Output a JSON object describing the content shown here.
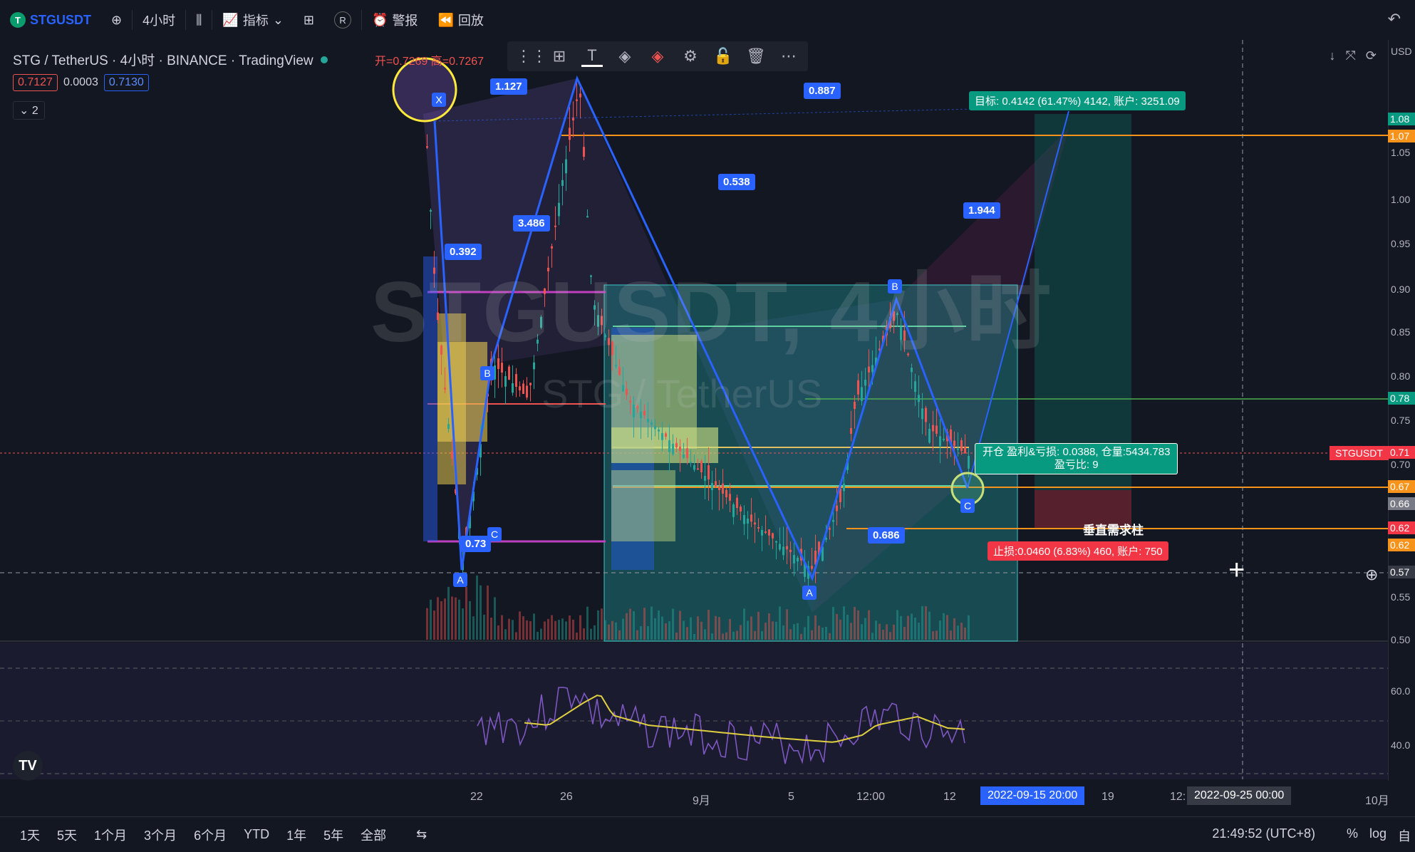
{
  "topbar": {
    "symbol": "STGUSDT",
    "symbol_logo": "T",
    "interval": "4小时",
    "indicators": "指标",
    "alert": "警报",
    "replay": "回放",
    "replay_badge": "R"
  },
  "legend": {
    "title": "STG / TetherUS · 4小时 · BINANCE · TradingView",
    "ohlc_open_label": "开=",
    "ohlc_open": "0.7269",
    "ohlc_high_label": "高=",
    "ohlc_high": "0.7267",
    "bid": "0.7127",
    "spread": "0.0003",
    "ask": "0.7130",
    "collapse_count": "2"
  },
  "watermark": {
    "main": "STGUSDT, 4小时",
    "sub": "STG / TetherUS"
  },
  "pattern": {
    "points": [
      "X",
      "A",
      "B",
      "C",
      "A",
      "B",
      "C"
    ],
    "ratios": [
      "1.127",
      "0.887",
      "0.538",
      "3.486",
      "0.392",
      "1.944",
      "0.686",
      "0.73"
    ]
  },
  "position": {
    "target": "目标: 0.4142 (61.47%) 4142, 账户: 3251.09",
    "open_line1": "开仓 盈利&亏损: 0.0388, 仓量:5434.783",
    "open_line2": "盈亏比: 9",
    "stop": "止损:0.0460 (6.83%) 460, 账户: 750",
    "demand_label": "垂直需求柱"
  },
  "axis": {
    "currency": "USD",
    "labels": [
      "1.08",
      "1.07",
      "1.05",
      "1.00",
      "0.95",
      "0.90",
      "0.85",
      "0.80",
      "0.75",
      "0.70",
      "0.55",
      "0.50"
    ],
    "tag_labels": [
      "1.08",
      "1.07",
      "0.78",
      "0.71",
      "0.67",
      "0.66",
      "0.62",
      "0.62",
      "0.57"
    ],
    "symbol_tag": "STGUSDT",
    "osc_labels": [
      "60.0",
      "40.0"
    ]
  },
  "time_axis": {
    "labels": [
      "22",
      "26",
      "9月",
      "5",
      "12:00",
      "12",
      "19",
      "12:",
      "10月"
    ],
    "selected_start": "2022-09-15   20:00",
    "selected_end": "2022-09-25   00:00"
  },
  "range_bar": {
    "ranges": [
      "1天",
      "5天",
      "1个月",
      "3个月",
      "6个月",
      "YTD",
      "1年",
      "5年",
      "全部"
    ],
    "clock": "21:49:52 (UTC+8)",
    "percent": "%",
    "log": "log",
    "auto": "自"
  },
  "colors": {
    "background": "#131722",
    "up": "#26a69a",
    "down": "#ef5350",
    "accent": "#2962ff",
    "orange": "#f7931a",
    "teal_zone": "#1fa8a8"
  }
}
